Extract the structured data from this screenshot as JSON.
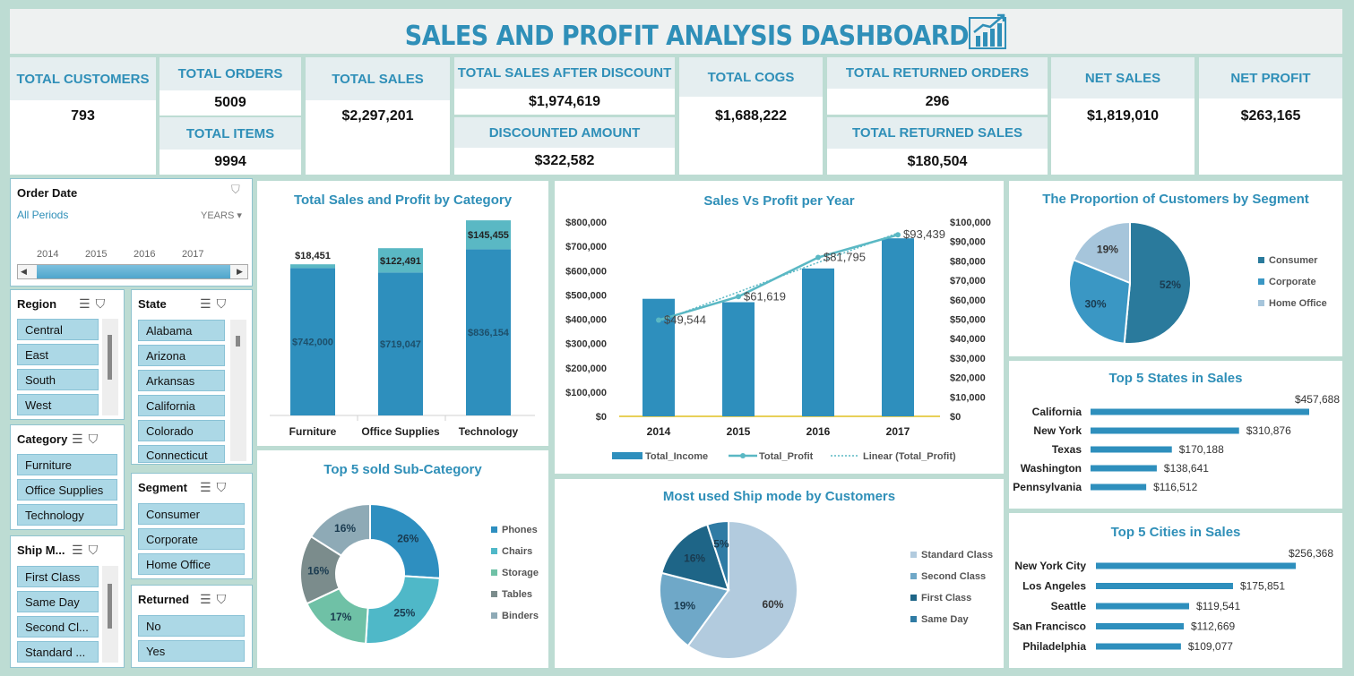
{
  "header": {
    "title": "SALES AND PROFIT ANALYSIS DASHBOARD",
    "icon": "bar-chart-growth-icon"
  },
  "kpis": {
    "total_customers": {
      "label": "TOTAL CUSTOMERS",
      "value": "793"
    },
    "total_orders": {
      "label": "TOTAL ORDERS",
      "value": "5009"
    },
    "total_items": {
      "label": "TOTAL ITEMS",
      "value": "9994"
    },
    "total_sales": {
      "label": "TOTAL SALES",
      "value": "$2,297,201"
    },
    "total_sales_after_discount": {
      "label": "TOTAL SALES AFTER DISCOUNT",
      "value": "$1,974,619"
    },
    "discounted_amount": {
      "label": "DISCOUNTED AMOUNT",
      "value": "$322,582"
    },
    "total_cogs": {
      "label": "TOTAL COGS",
      "value": "$1,688,222"
    },
    "total_returned_orders": {
      "label": "TOTAL RETURNED ORDERS",
      "value": "296"
    },
    "total_returned_sales": {
      "label": "TOTAL RETURNED SALES",
      "value": "$180,504"
    },
    "net_sales": {
      "label": "NET SALES",
      "value": "$1,819,010"
    },
    "net_profit": {
      "label": "NET PROFIT",
      "value": "$263,165"
    }
  },
  "timeline": {
    "title": "Order Date",
    "periods": "All Periods",
    "level": "YEARS",
    "years": [
      "2014",
      "2015",
      "2016",
      "2017"
    ]
  },
  "slicers": {
    "region": {
      "title": "Region",
      "items": [
        "Central",
        "East",
        "South",
        "West"
      ]
    },
    "state": {
      "title": "State",
      "items": [
        "Alabama",
        "Arizona",
        "Arkansas",
        "California",
        "Colorado",
        "Connecticut"
      ]
    },
    "category": {
      "title": "Category",
      "items": [
        "Furniture",
        "Office Supplies",
        "Technology"
      ]
    },
    "segment": {
      "title": "Segment",
      "items": [
        "Consumer",
        "Corporate",
        "Home Office"
      ]
    },
    "ship_mode": {
      "title": "Ship M...",
      "items": [
        "First Class",
        "Same Day",
        "Second Cl...",
        "Standard ..."
      ]
    },
    "returned": {
      "title": "Returned",
      "items": [
        "No",
        "Yes"
      ]
    }
  },
  "colors": {
    "accent": "#2f8fb8",
    "bar": "#2e8fbd",
    "profit": "#5ab8c4",
    "pie_consumer": "#2a7fa0",
    "pie_corporate": "#3b95c0",
    "pie_home": "#a7c6da",
    "light_bar": "#2e8fbd"
  },
  "chart_data": [
    {
      "id": "category",
      "type": "bar",
      "title": "Total Sales and Profit by Category",
      "categories": [
        "Furniture",
        "Office Supplies",
        "Technology"
      ],
      "series": [
        {
          "name": "Sales",
          "values": [
            742000,
            719047,
            836154
          ],
          "labels": [
            "$742,000",
            "$719,047",
            "$836,154"
          ]
        },
        {
          "name": "Profit",
          "values": [
            18451,
            122491,
            145455
          ],
          "labels": [
            "$18,451",
            "$122,491",
            "$145,455"
          ]
        }
      ]
    },
    {
      "id": "yearly",
      "type": "bar",
      "title": "Sales Vs Profit per Year",
      "categories": [
        "2014",
        "2015",
        "2016",
        "2017"
      ],
      "series": [
        {
          "name": "Total_Income",
          "values": [
            484000,
            470000,
            609000,
            733000
          ],
          "axis": "left"
        },
        {
          "name": "Total_Profit",
          "values": [
            49544,
            61619,
            81795,
            93439
          ],
          "labels": [
            "$49,544",
            "$61,619",
            "$81,795",
            "$93,439"
          ],
          "axis": "right"
        }
      ],
      "trendline_label": "Linear (Total_Profit)",
      "y_left": {
        "min": 0,
        "max": 800000,
        "ticks": [
          "$0",
          "$100,000",
          "$200,000",
          "$300,000",
          "$400,000",
          "$500,000",
          "$600,000",
          "$700,000",
          "$800,000"
        ]
      },
      "y_right": {
        "min": 0,
        "max": 100000,
        "ticks": [
          "$0",
          "$10,000",
          "$20,000",
          "$30,000",
          "$40,000",
          "$50,000",
          "$60,000",
          "$70,000",
          "$80,000",
          "$90,000",
          "$100,000"
        ]
      }
    },
    {
      "id": "segment",
      "type": "pie",
      "title": "The Proportion of Customers by Segment",
      "categories": [
        "Consumer",
        "Corporate",
        "Home Office"
      ],
      "values": [
        52,
        30,
        19
      ],
      "labels": [
        "52%",
        "30%",
        "19%"
      ]
    },
    {
      "id": "states",
      "type": "bar",
      "orientation": "horizontal",
      "title": "Top 5 States in Sales",
      "categories": [
        "California",
        "New York",
        "Texas",
        "Washington",
        "Pennsylvania"
      ],
      "values": [
        457688,
        310876,
        170188,
        138641,
        116512
      ],
      "labels": [
        "$457,688",
        "$310,876",
        "$170,188",
        "$138,641",
        "$116,512"
      ]
    },
    {
      "id": "subcat",
      "type": "pie",
      "variant": "donut",
      "title": "Top 5 sold Sub-Category",
      "categories": [
        "Phones",
        "Chairs",
        "Storage",
        "Tables",
        "Binders"
      ],
      "values": [
        26,
        25,
        17,
        16,
        16
      ],
      "labels": [
        "26%",
        "25%",
        "17%",
        "16%",
        "16%"
      ]
    },
    {
      "id": "shipmode",
      "type": "pie",
      "title": "Most used Ship mode by Customers",
      "categories": [
        "Standard Class",
        "Second Class",
        "First Class",
        "Same Day"
      ],
      "values": [
        60,
        19,
        16,
        5
      ],
      "labels": [
        "60%",
        "19%",
        "16%",
        "5%"
      ]
    },
    {
      "id": "cities",
      "type": "bar",
      "orientation": "horizontal",
      "title": "Top 5 Cities in Sales",
      "categories": [
        "New York City",
        "Los Angeles",
        "Seattle",
        "San Francisco",
        "Philadelphia"
      ],
      "values": [
        256368,
        175851,
        119541,
        112669,
        109077
      ],
      "labels": [
        "$256,368",
        "$175,851",
        "$119,541",
        "$112,669",
        "$109,077"
      ]
    }
  ]
}
